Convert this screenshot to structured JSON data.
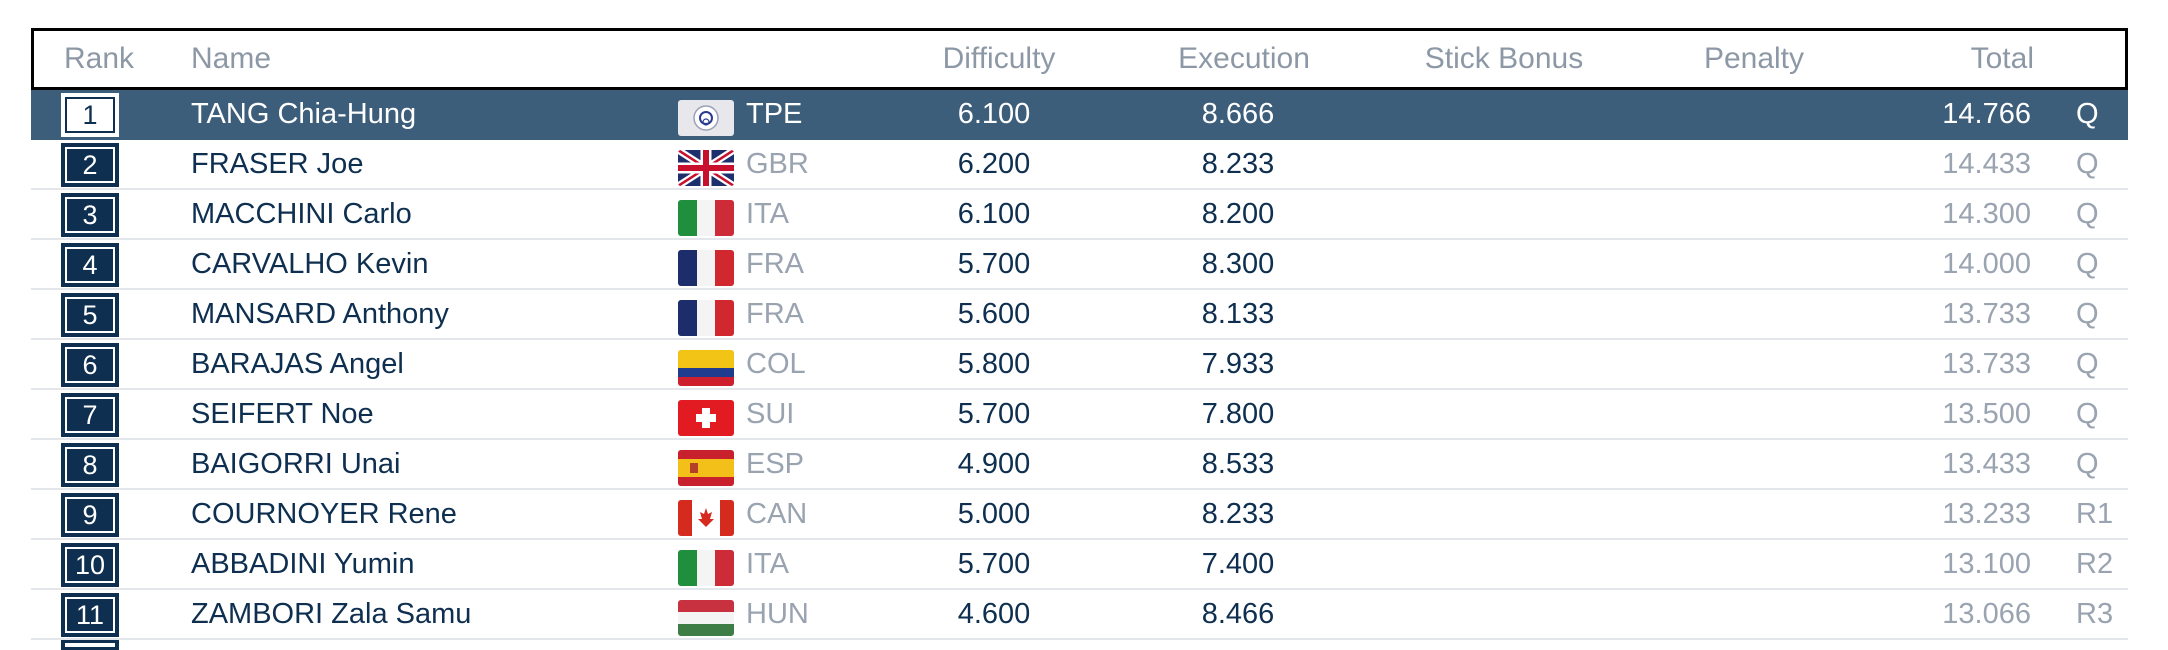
{
  "headers": {
    "rank": "Rank",
    "name": "Name",
    "difficulty": "Difficulty",
    "execution": "Execution",
    "stick_bonus": "Stick Bonus",
    "penalty": "Penalty",
    "total": "Total"
  },
  "colors": {
    "highlight_row": "#3d5e7a",
    "rank_box": "#0e2f4f",
    "text_dark": "#0e2f4f",
    "text_muted": "#9aa3b0"
  },
  "rows": [
    {
      "rank": "1",
      "name": "TANG Chia-Hung",
      "flag": "tpe-flag-icon",
      "noc": "TPE",
      "difficulty": "6.100",
      "execution": "8.666",
      "total": "14.766",
      "qual": "Q",
      "highlighted": true
    },
    {
      "rank": "2",
      "name": "FRASER Joe",
      "flag": "gbr-flag-icon",
      "noc": "GBR",
      "difficulty": "6.200",
      "execution": "8.233",
      "total": "14.433",
      "qual": "Q"
    },
    {
      "rank": "3",
      "name": "MACCHINI Carlo",
      "flag": "ita-flag-icon",
      "noc": "ITA",
      "difficulty": "6.100",
      "execution": "8.200",
      "total": "14.300",
      "qual": "Q"
    },
    {
      "rank": "4",
      "name": "CARVALHO Kevin",
      "flag": "fra-flag-icon",
      "noc": "FRA",
      "difficulty": "5.700",
      "execution": "8.300",
      "total": "14.000",
      "qual": "Q"
    },
    {
      "rank": "5",
      "name": "MANSARD Anthony",
      "flag": "fra-flag-icon",
      "noc": "FRA",
      "difficulty": "5.600",
      "execution": "8.133",
      "total": "13.733",
      "qual": "Q"
    },
    {
      "rank": "6",
      "name": "BARAJAS Angel",
      "flag": "col-flag-icon",
      "noc": "COL",
      "difficulty": "5.800",
      "execution": "7.933",
      "total": "13.733",
      "qual": "Q"
    },
    {
      "rank": "7",
      "name": "SEIFERT Noe",
      "flag": "sui-flag-icon",
      "noc": "SUI",
      "difficulty": "5.700",
      "execution": "7.800",
      "total": "13.500",
      "qual": "Q"
    },
    {
      "rank": "8",
      "name": "BAIGORRI Unai",
      "flag": "esp-flag-icon",
      "noc": "ESP",
      "difficulty": "4.900",
      "execution": "8.533",
      "total": "13.433",
      "qual": "Q"
    },
    {
      "rank": "9",
      "name": "COURNOYER Rene",
      "flag": "can-flag-icon",
      "noc": "CAN",
      "difficulty": "5.000",
      "execution": "8.233",
      "total": "13.233",
      "qual": "R1"
    },
    {
      "rank": "10",
      "name": "ABBADINI Yumin",
      "flag": "ita-flag-icon",
      "noc": "ITA",
      "difficulty": "5.700",
      "execution": "7.400",
      "total": "13.100",
      "qual": "R2"
    },
    {
      "rank": "11",
      "name": "ZAMBORI Zala Samu",
      "flag": "hun-flag-icon",
      "noc": "HUN",
      "difficulty": "4.600",
      "execution": "8.466",
      "total": "13.066",
      "qual": "R3"
    }
  ]
}
